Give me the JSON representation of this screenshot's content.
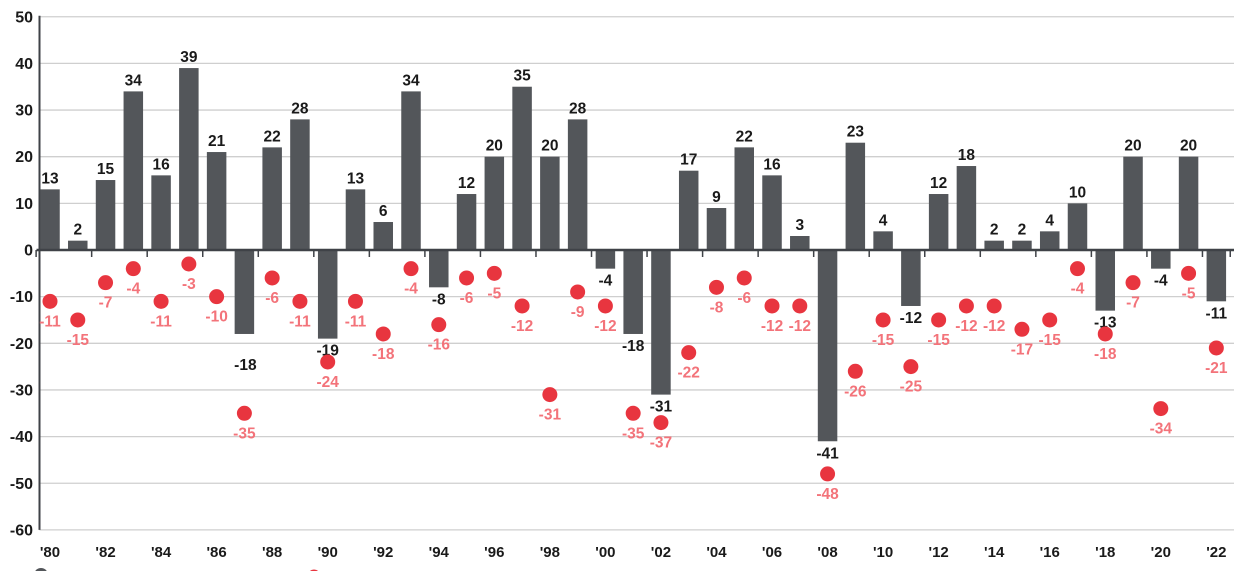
{
  "chart_data": {
    "type": "combo-bar-scatter",
    "title": "",
    "xlabel": "",
    "ylabel": "",
    "categories": [
      1980,
      1981,
      1982,
      1983,
      1984,
      1985,
      1986,
      1987,
      1988,
      1989,
      1990,
      1991,
      1992,
      1993,
      1994,
      1995,
      1996,
      1997,
      1998,
      1999,
      2000,
      2001,
      2002,
      2003,
      2004,
      2005,
      2006,
      2007,
      2008,
      2009,
      2010,
      2011,
      2012,
      2013,
      2014,
      2015,
      2016,
      2017,
      2018,
      2019,
      2020,
      2021,
      2022
    ],
    "x_tick_labels": [
      "'80",
      "'82",
      "'84",
      "'86",
      "'88",
      "'90",
      "'92",
      "'94",
      "'96",
      "'98",
      "'00",
      "'02",
      "'04",
      "'06",
      "'08",
      "'10",
      "'12",
      "'14",
      "'16",
      "'18",
      "'20",
      "'22"
    ],
    "y_ticks": [
      50,
      40,
      30,
      20,
      10,
      0,
      -10,
      -20,
      -30,
      -40,
      -50,
      -60
    ],
    "ylim": [
      -60,
      50
    ],
    "grid": true,
    "legend_position": "bottom-cropped",
    "series": [
      {
        "name": "calendar_year_return_bars",
        "type": "bar",
        "color": "#53565A",
        "label_color": "#1A1A1A",
        "values": [
          13,
          2,
          15,
          34,
          16,
          39,
          21,
          -18,
          22,
          28,
          -19,
          13,
          6,
          34,
          -8,
          12,
          20,
          35,
          20,
          28,
          -4,
          -18,
          -31,
          17,
          9,
          22,
          16,
          3,
          -41,
          23,
          4,
          -12,
          12,
          18,
          2,
          2,
          4,
          10,
          -13,
          20,
          -4,
          20,
          -11
        ]
      },
      {
        "name": "intra_year_decline_dots",
        "type": "scatter",
        "color": "#E8353F",
        "label_color": "#F3737A",
        "values": [
          -11,
          -15,
          -7,
          -4,
          -11,
          -3,
          -10,
          -35,
          -6,
          -11,
          -24,
          -11,
          -18,
          -4,
          -16,
          -6,
          -5,
          -12,
          -31,
          -9,
          -12,
          -35,
          -37,
          -22,
          -8,
          -6,
          -12,
          -12,
          -48,
          -26,
          -15,
          -25,
          -15,
          -12,
          -12,
          -17,
          -15,
          -4,
          -18,
          -7,
          -34,
          -5,
          -21
        ]
      }
    ],
    "layout_hints": {
      "bar_label_offsets": {
        "1987": {
          "dx": 1,
          "dy": 19
        }
      }
    }
  },
  "axis_colors": {
    "grid": "#CFCFCF",
    "axis": "#3F4247",
    "tick_label": "#1A1A1A"
  },
  "legend_cropped": {
    "markers": [
      {
        "name": "return-series-marker",
        "color": "#53565A"
      },
      {
        "name": "decline-series-marker",
        "color": "#E8353F"
      }
    ]
  }
}
